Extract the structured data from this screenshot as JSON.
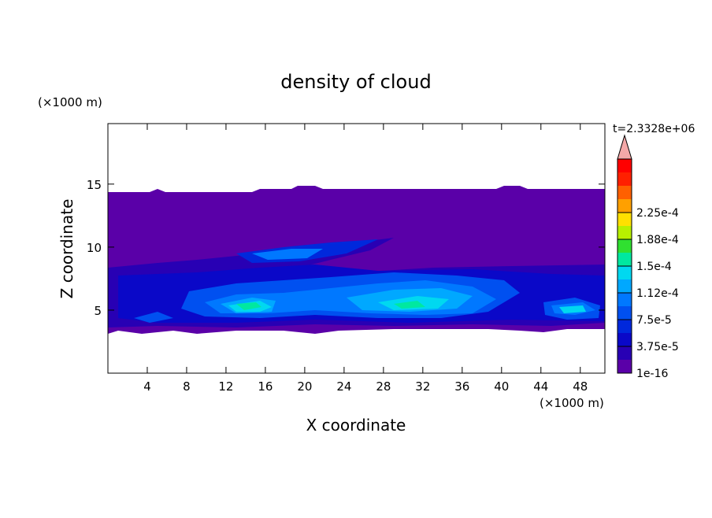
{
  "chart_data": {
    "type": "contour",
    "title": "density of cloud",
    "x_label": "X coordinate",
    "y_label": "Z coordinate",
    "x_unit": "(×1000 m)",
    "y_unit": "(×1000 m)",
    "annotation": "t=2.3328e+06",
    "xlim": [
      0,
      50.5
    ],
    "ylim": [
      0,
      19.8
    ],
    "xticks": [
      4,
      8,
      12,
      16,
      20,
      24,
      28,
      32,
      36,
      40,
      44,
      48
    ],
    "yticks": [
      5,
      10,
      15
    ],
    "colorbar": {
      "ticks": [
        {
          "value": 1e-16,
          "label": "1e-16"
        },
        {
          "value": 3.75e-05,
          "label": "3.75e-5"
        },
        {
          "value": 7.5e-05,
          "label": "7.5e-5"
        },
        {
          "value": 0.000112,
          "label": "1.12e-4"
        },
        {
          "value": 0.00015,
          "label": "1.5e-4"
        },
        {
          "value": 0.000188,
          "label": "1.88e-4"
        },
        {
          "value": 0.000225,
          "label": "2.25e-4"
        }
      ],
      "colors": [
        "#5a00a8",
        "#2800b4",
        "#0a08c8",
        "#0028dc",
        "#0050f0",
        "#0078ff",
        "#00a8ff",
        "#00d8f0",
        "#00e8a0",
        "#30e030",
        "#b8f000",
        "#ffe000",
        "#ffa000",
        "#ff6000",
        "#ff2000",
        "#ff0000"
      ],
      "extend_color": "#f4a8a8"
    }
  }
}
